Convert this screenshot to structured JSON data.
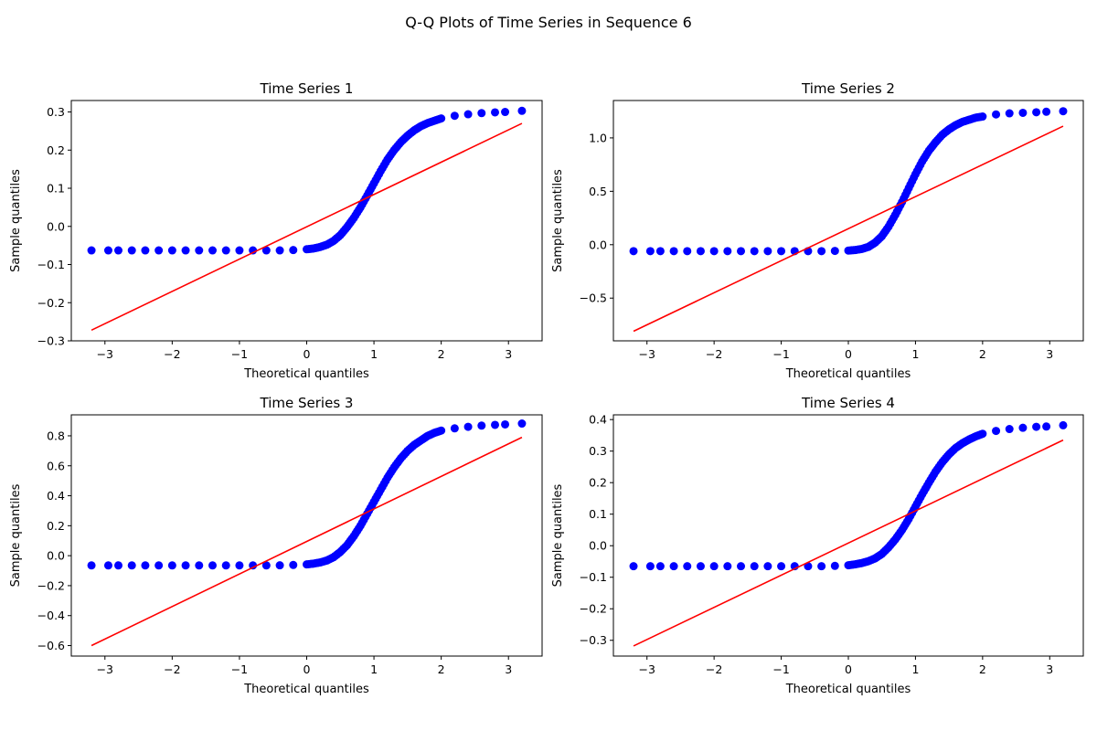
{
  "figure": {
    "suptitle": "Q-Q Plots of Time Series in Sequence 6"
  },
  "chart_data": [
    {
      "type": "scatter",
      "title": "Time Series 1",
      "xlabel": "Theoretical quantiles",
      "ylabel": "Sample quantiles",
      "xlim": [
        -3.5,
        3.5
      ],
      "ylim": [
        -0.3,
        0.33
      ],
      "xticks": [
        -3,
        -2,
        -1,
        0,
        1,
        2,
        3
      ],
      "xtick_labels": [
        "−3",
        "−2",
        "−1",
        "0",
        "1",
        "2",
        "3"
      ],
      "yticks": [
        -0.3,
        -0.2,
        -0.1,
        0.0,
        0.1,
        0.2,
        0.3
      ],
      "ytick_labels": [
        "−0.3",
        "−0.2",
        "−0.1",
        "0.0",
        "0.1",
        "0.2",
        "0.3"
      ],
      "grid": false,
      "series": [
        {
          "kind": "points",
          "color": "#0000ff",
          "x": [
            -3.2,
            -2.95,
            -2.8,
            -2.6,
            -2.4,
            -2.2,
            -2.0,
            -1.8,
            -1.6,
            -1.4,
            -1.2,
            -1.0,
            -0.8,
            -0.6,
            -0.4,
            -0.2,
            0.0,
            0.1,
            0.2,
            0.3,
            0.4,
            0.5,
            0.6,
            0.7,
            0.8,
            0.9,
            1.0,
            1.1,
            1.2,
            1.3,
            1.4,
            1.5,
            1.6,
            1.7,
            1.8,
            1.9,
            2.0,
            2.2,
            2.4,
            2.6,
            2.8,
            2.95,
            3.2
          ],
          "y": [
            -0.063,
            -0.063,
            -0.063,
            -0.063,
            -0.063,
            -0.063,
            -0.063,
            -0.063,
            -0.063,
            -0.063,
            -0.063,
            -0.063,
            -0.063,
            -0.063,
            -0.063,
            -0.062,
            -0.06,
            -0.058,
            -0.054,
            -0.048,
            -0.038,
            -0.023,
            -0.002,
            0.022,
            0.05,
            0.081,
            0.113,
            0.145,
            0.175,
            0.2,
            0.221,
            0.238,
            0.252,
            0.263,
            0.271,
            0.277,
            0.283,
            0.29,
            0.294,
            0.297,
            0.299,
            0.3,
            0.303
          ]
        },
        {
          "kind": "line",
          "color": "#ff0000",
          "x": [
            -3.2,
            3.2
          ],
          "y": [
            -0.272,
            0.27
          ]
        }
      ]
    },
    {
      "type": "scatter",
      "title": "Time Series 2",
      "xlabel": "Theoretical quantiles",
      "ylabel": "Sample quantiles",
      "xlim": [
        -3.5,
        3.5
      ],
      "ylim": [
        -0.9,
        1.35
      ],
      "xticks": [
        -3,
        -2,
        -1,
        0,
        1,
        2,
        3
      ],
      "xtick_labels": [
        "−3",
        "−2",
        "−1",
        "0",
        "1",
        "2",
        "3"
      ],
      "yticks": [
        -0.5,
        0.0,
        0.5,
        1.0
      ],
      "ytick_labels": [
        "−0.5",
        "0.0",
        "0.5",
        "1.0"
      ],
      "grid": false,
      "series": [
        {
          "kind": "points",
          "color": "#0000ff",
          "x": [
            -3.2,
            -2.95,
            -2.8,
            -2.6,
            -2.4,
            -2.2,
            -2.0,
            -1.8,
            -1.6,
            -1.4,
            -1.2,
            -1.0,
            -0.8,
            -0.6,
            -0.4,
            -0.2,
            0.0,
            0.1,
            0.2,
            0.3,
            0.4,
            0.5,
            0.6,
            0.7,
            0.8,
            0.9,
            1.0,
            1.1,
            1.2,
            1.3,
            1.4,
            1.5,
            1.6,
            1.7,
            1.8,
            1.9,
            2.0,
            2.2,
            2.4,
            2.6,
            2.8,
            2.95,
            3.2
          ],
          "y": [
            -0.06,
            -0.06,
            -0.06,
            -0.06,
            -0.06,
            -0.06,
            -0.06,
            -0.06,
            -0.06,
            -0.06,
            -0.06,
            -0.06,
            -0.06,
            -0.06,
            -0.06,
            -0.058,
            -0.055,
            -0.05,
            -0.04,
            -0.02,
            0.02,
            0.08,
            0.17,
            0.28,
            0.4,
            0.53,
            0.66,
            0.78,
            0.88,
            0.96,
            1.03,
            1.08,
            1.12,
            1.15,
            1.17,
            1.19,
            1.2,
            1.22,
            1.23,
            1.235,
            1.24,
            1.245,
            1.25
          ]
        },
        {
          "kind": "line",
          "color": "#ff0000",
          "x": [
            -3.2,
            3.2
          ],
          "y": [
            -0.81,
            1.11
          ]
        }
      ]
    },
    {
      "type": "scatter",
      "title": "Time Series 3",
      "xlabel": "Theoretical quantiles",
      "ylabel": "Sample quantiles",
      "xlim": [
        -3.5,
        3.5
      ],
      "ylim": [
        -0.67,
        0.94
      ],
      "xticks": [
        -3,
        -2,
        -1,
        0,
        1,
        2,
        3
      ],
      "xtick_labels": [
        "−3",
        "−2",
        "−1",
        "0",
        "1",
        "2",
        "3"
      ],
      "yticks": [
        -0.6,
        -0.4,
        -0.2,
        0.0,
        0.2,
        0.4,
        0.6,
        0.8
      ],
      "ytick_labels": [
        "−0.6",
        "−0.4",
        "−0.2",
        "0.0",
        "0.2",
        "0.4",
        "0.6",
        "0.8"
      ],
      "grid": false,
      "series": [
        {
          "kind": "points",
          "color": "#0000ff",
          "x": [
            -3.2,
            -2.95,
            -2.8,
            -2.6,
            -2.4,
            -2.2,
            -2.0,
            -1.8,
            -1.6,
            -1.4,
            -1.2,
            -1.0,
            -0.8,
            -0.6,
            -0.4,
            -0.2,
            0.0,
            0.1,
            0.2,
            0.3,
            0.4,
            0.5,
            0.6,
            0.7,
            0.8,
            0.9,
            1.0,
            1.1,
            1.2,
            1.3,
            1.4,
            1.5,
            1.6,
            1.7,
            1.8,
            1.9,
            2.0,
            2.2,
            2.4,
            2.6,
            2.8,
            2.95,
            3.2
          ],
          "y": [
            -0.065,
            -0.065,
            -0.065,
            -0.065,
            -0.065,
            -0.065,
            -0.065,
            -0.065,
            -0.065,
            -0.065,
            -0.065,
            -0.065,
            -0.065,
            -0.065,
            -0.064,
            -0.062,
            -0.058,
            -0.053,
            -0.045,
            -0.032,
            -0.01,
            0.025,
            0.07,
            0.13,
            0.2,
            0.28,
            0.36,
            0.44,
            0.52,
            0.59,
            0.65,
            0.7,
            0.74,
            0.77,
            0.8,
            0.82,
            0.835,
            0.85,
            0.86,
            0.868,
            0.873,
            0.876,
            0.882
          ]
        },
        {
          "kind": "line",
          "color": "#ff0000",
          "x": [
            -3.2,
            3.2
          ],
          "y": [
            -0.6,
            0.79
          ]
        }
      ]
    },
    {
      "type": "scatter",
      "title": "Time Series 4",
      "xlabel": "Theoretical quantiles",
      "ylabel": "Sample quantiles",
      "xlim": [
        -3.5,
        3.5
      ],
      "ylim": [
        -0.35,
        0.415
      ],
      "xticks": [
        -3,
        -2,
        -1,
        0,
        1,
        2,
        3
      ],
      "xtick_labels": [
        "−3",
        "−2",
        "−1",
        "0",
        "1",
        "2",
        "3"
      ],
      "yticks": [
        -0.3,
        -0.2,
        -0.1,
        0.0,
        0.1,
        0.2,
        0.3,
        0.4
      ],
      "ytick_labels": [
        "−0.3",
        "−0.2",
        "−0.1",
        "0.0",
        "0.1",
        "0.2",
        "0.3",
        "0.4"
      ],
      "grid": false,
      "series": [
        {
          "kind": "points",
          "color": "#0000ff",
          "x": [
            -3.2,
            -2.95,
            -2.8,
            -2.6,
            -2.4,
            -2.2,
            -2.0,
            -1.8,
            -1.6,
            -1.4,
            -1.2,
            -1.0,
            -0.8,
            -0.6,
            -0.4,
            -0.2,
            0.0,
            0.1,
            0.2,
            0.3,
            0.4,
            0.5,
            0.6,
            0.7,
            0.8,
            0.9,
            1.0,
            1.1,
            1.2,
            1.3,
            1.4,
            1.5,
            1.6,
            1.7,
            1.8,
            1.9,
            2.0,
            2.2,
            2.4,
            2.6,
            2.8,
            2.95,
            3.2
          ],
          "y": [
            -0.065,
            -0.065,
            -0.065,
            -0.065,
            -0.065,
            -0.065,
            -0.065,
            -0.065,
            -0.065,
            -0.065,
            -0.065,
            -0.065,
            -0.065,
            -0.065,
            -0.065,
            -0.064,
            -0.062,
            -0.059,
            -0.055,
            -0.049,
            -0.04,
            -0.026,
            -0.005,
            0.02,
            0.05,
            0.085,
            0.124,
            0.163,
            0.2,
            0.235,
            0.265,
            0.29,
            0.31,
            0.325,
            0.337,
            0.347,
            0.355,
            0.364,
            0.37,
            0.374,
            0.377,
            0.378,
            0.382
          ]
        },
        {
          "kind": "line",
          "color": "#ff0000",
          "x": [
            -3.2,
            3.2
          ],
          "y": [
            -0.318,
            0.335
          ]
        }
      ]
    }
  ]
}
